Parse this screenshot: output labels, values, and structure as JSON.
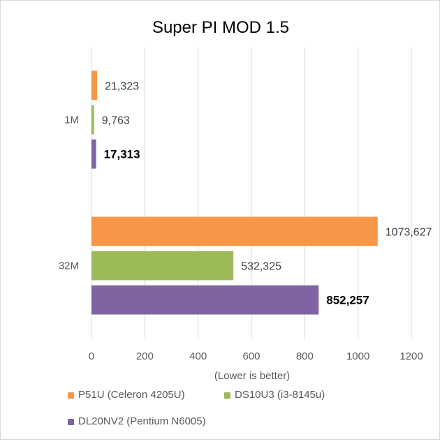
{
  "chart_data": {
    "type": "bar",
    "orientation": "horizontal",
    "title": "Super PI MOD 1.5",
    "xlabel": "(Lower is better)",
    "ylabel": "",
    "xlim": [
      0,
      1200
    ],
    "x_ticks": [
      "0",
      "200",
      "400",
      "600",
      "800",
      "1000",
      "1200"
    ],
    "categories": [
      "1M",
      "32M"
    ],
    "series": [
      {
        "name": "P51U (Celeron 4205U)",
        "color": "#f79646",
        "values": [
          21.323,
          1073.627
        ],
        "labels": [
          "21,323",
          "1073,627"
        ],
        "bold": false
      },
      {
        "name": "DS10U3 (i3-8145u)",
        "color": "#9bbb59",
        "values": [
          9.763,
          532.325
        ],
        "labels": [
          "9,763",
          "532,325"
        ],
        "bold": false
      },
      {
        "name": "DL20NV2 (Pentium N6005)",
        "color": "#8064a2",
        "values": [
          17.313,
          852.257
        ],
        "labels": [
          "17,313",
          "852,257"
        ],
        "bold": true
      }
    ],
    "grid": true,
    "legend_position": "bottom"
  }
}
